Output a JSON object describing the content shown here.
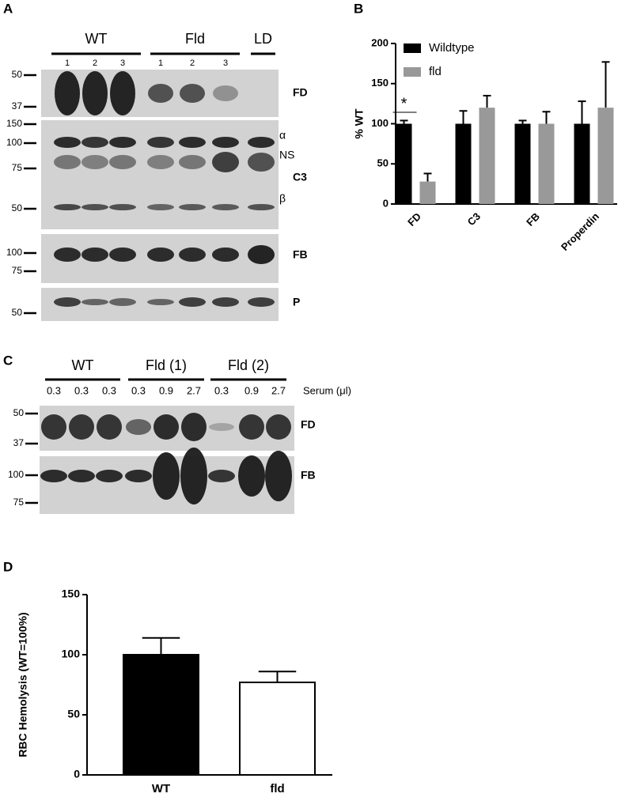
{
  "panel_labels": [
    "A",
    "B",
    "C",
    "D"
  ],
  "blot_a": {
    "groups": [
      {
        "label": "WT",
        "lanes": [
          "1",
          "2",
          "3"
        ]
      },
      {
        "label": "Fld",
        "lanes": [
          "1",
          "2",
          "3"
        ]
      },
      {
        "label": "LD",
        "lanes": []
      }
    ],
    "strips": [
      {
        "label": "FD",
        "markers": [
          "50",
          "37"
        ]
      },
      {
        "label": "C3",
        "markers": [
          "150",
          "100",
          "75",
          "50"
        ],
        "band_labels": [
          "α",
          "NS",
          "β"
        ]
      },
      {
        "label": "FB",
        "markers": [
          "100",
          "75"
        ]
      },
      {
        "label": "P",
        "markers": [
          "50"
        ]
      }
    ]
  },
  "blot_c": {
    "groups": [
      {
        "label": "WT",
        "lanes": [
          "0.3",
          "0.3",
          "0.3"
        ]
      },
      {
        "label": "Fld (1)",
        "lanes": [
          "0.3",
          "0.9",
          "2.7"
        ]
      },
      {
        "label": "Fld (2)",
        "lanes": [
          "0.3",
          "0.9",
          "2.7"
        ]
      }
    ],
    "lane_axis_label": "Serum (μl)",
    "strips": [
      {
        "label": "FD",
        "markers": [
          "50",
          "37"
        ]
      },
      {
        "label": "FB",
        "markers": [
          "100",
          "75"
        ]
      }
    ]
  },
  "chart_data": [
    {
      "type": "bar",
      "ylabel": "% WT",
      "categories": [
        "FD",
        "C3",
        "FB",
        "Properdin"
      ],
      "series": [
        {
          "name": "Wildtype",
          "color": "#000000",
          "values": [
            100,
            100,
            100,
            100
          ],
          "errors": [
            4,
            16,
            4,
            28
          ]
        },
        {
          "name": "fld",
          "color": "#999999",
          "values": [
            28,
            120,
            100,
            120
          ],
          "errors": [
            10,
            15,
            15,
            57
          ]
        }
      ],
      "ylim": [
        0,
        200
      ],
      "yticks": [
        0,
        50,
        100,
        150,
        200
      ],
      "legend": "upper left",
      "annotation": "*"
    },
    {
      "type": "bar",
      "ylabel": "RBC Hemolysis (WT=100%)",
      "categories": [
        "WT",
        "fld"
      ],
      "values": [
        100,
        77
      ],
      "errors": [
        14,
        9
      ],
      "colors": [
        "#000000",
        "#ffffff"
      ],
      "ylim": [
        0,
        150
      ],
      "yticks": [
        0,
        50,
        100,
        150
      ]
    }
  ]
}
